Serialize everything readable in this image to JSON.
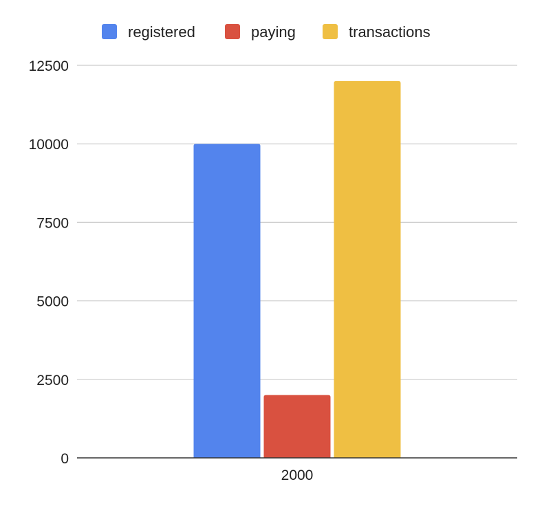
{
  "chart_data": {
    "type": "bar",
    "categories": [
      "2000"
    ],
    "series": [
      {
        "name": "registered",
        "values": [
          10000
        ],
        "color": "#5384ED"
      },
      {
        "name": "paying",
        "values": [
          2000
        ],
        "color": "#D95140"
      },
      {
        "name": "transactions",
        "values": [
          12000
        ],
        "color": "#EFBF43"
      }
    ],
    "title": "",
    "xlabel": "",
    "ylabel": "",
    "ylim": [
      0,
      12500
    ],
    "yticks": [
      "0",
      "2500",
      "5000",
      "7500",
      "10000",
      "12500"
    ],
    "grid": true,
    "legend_position": "top",
    "colors": {
      "gridline": "#CCCCCC",
      "axis": "#333333",
      "text": "#222222"
    }
  }
}
